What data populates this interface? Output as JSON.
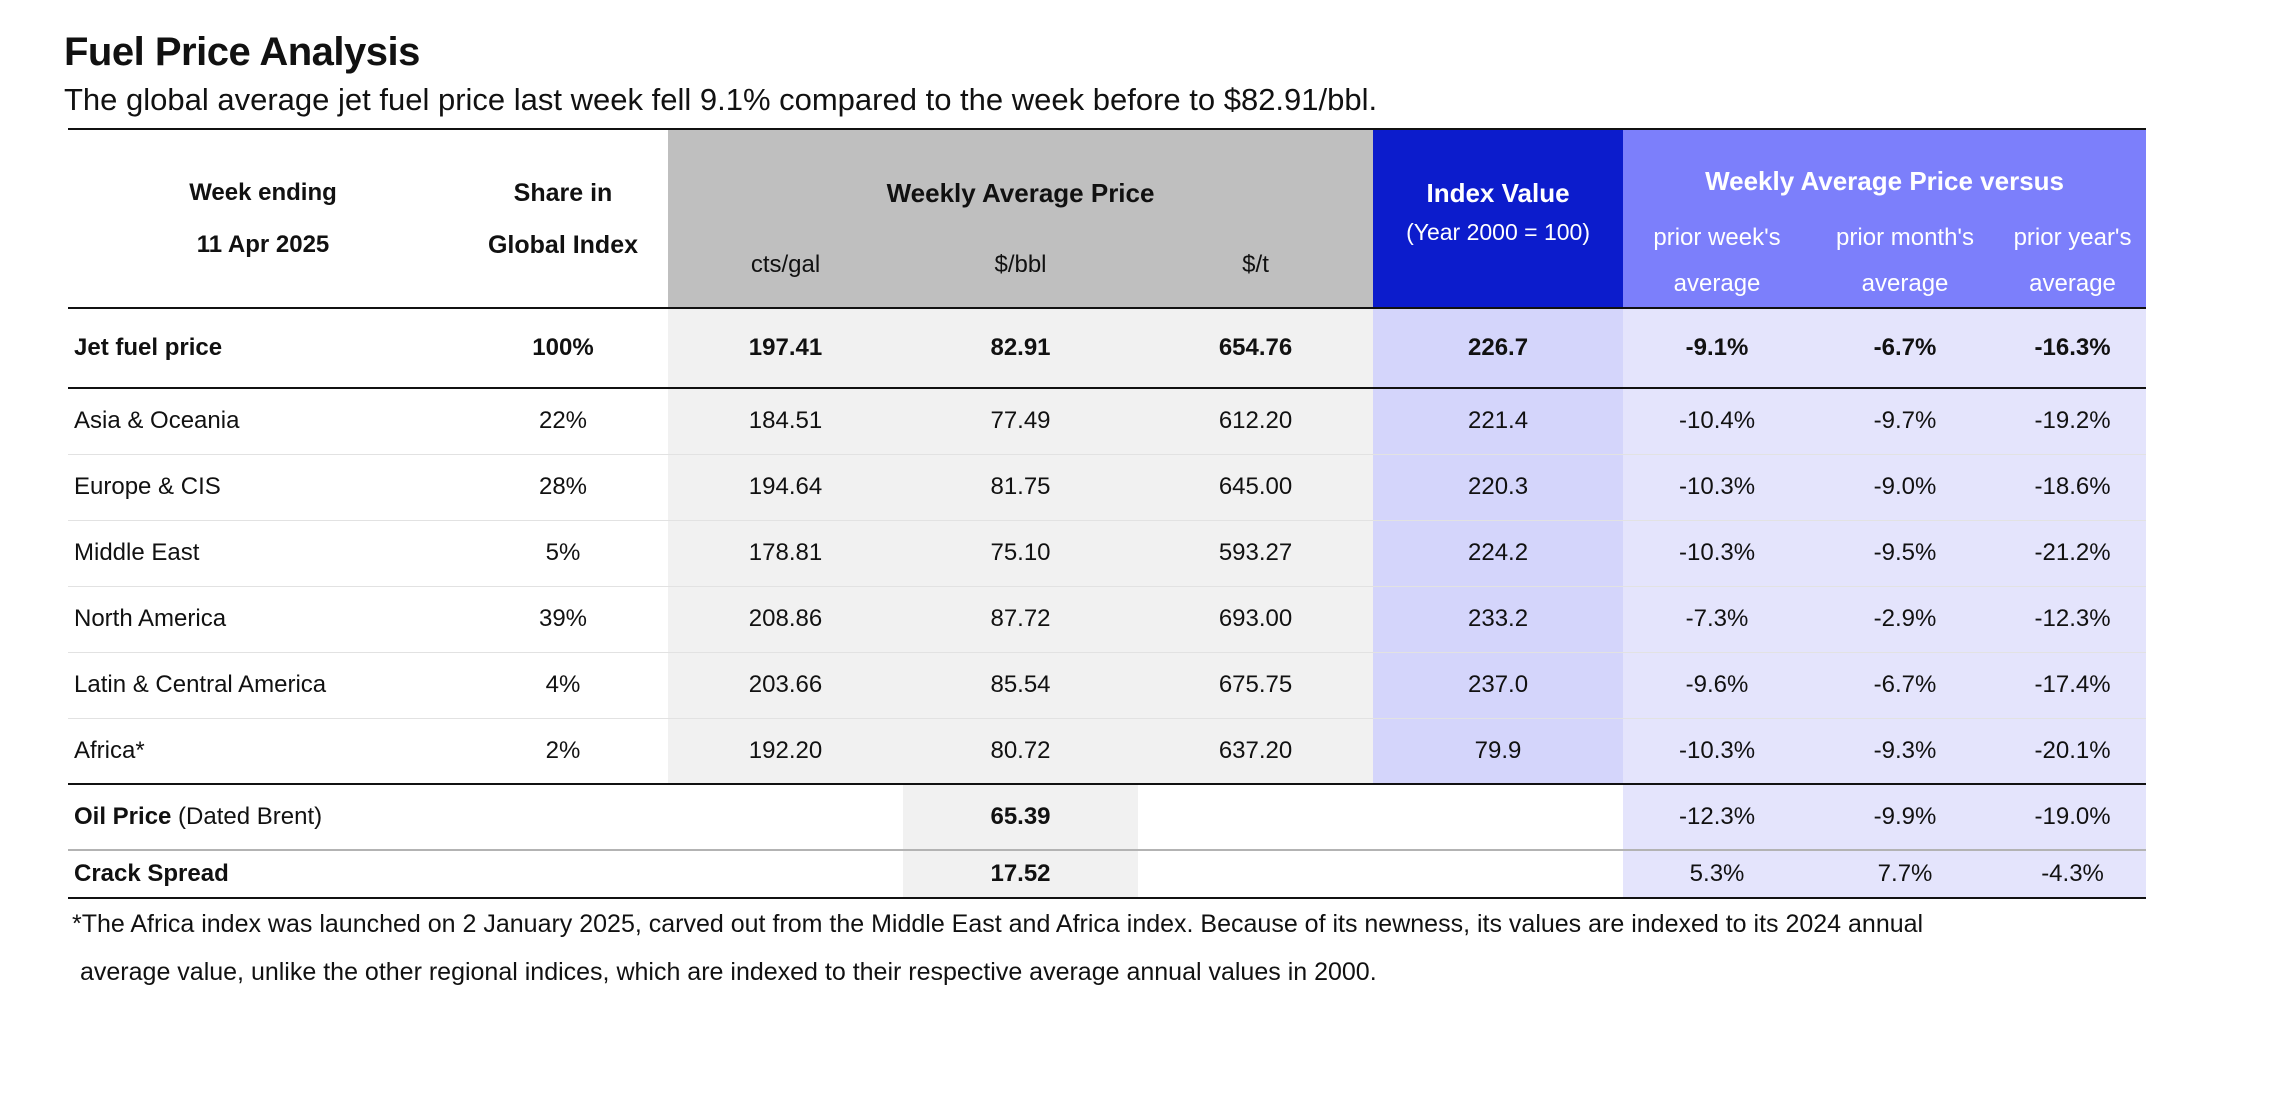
{
  "title": "Fuel Price Analysis",
  "subtitle": "The global average jet fuel price last week fell 9.1% compared to the week before to $82.91/bbl.",
  "header": {
    "week_ending_label": "Week ending",
    "week_ending_date": "11 Apr 2025",
    "share_label_1": "Share in",
    "share_label_2": "Global Index",
    "weekly_avg_label": "Weekly Average Price",
    "unit_cts": "cts/gal",
    "unit_bbl": "$/bbl",
    "unit_t": "$/t",
    "index_label": "Index Value",
    "index_sub": "(Year 2000 = 100)",
    "versus_label": "Weekly Average Price versus",
    "prior_week_1": "prior week's",
    "prior_week_2": "average",
    "prior_month_1": "prior month's",
    "prior_month_2": "average",
    "prior_year_1": "prior year's",
    "prior_year_2": "average"
  },
  "total": {
    "label": "Jet fuel price",
    "share": "100%",
    "cts": "197.41",
    "bbl": "82.91",
    "t": "654.76",
    "index": "226.7",
    "week": "-9.1%",
    "month": "-6.7%",
    "year": "-16.3%"
  },
  "regions": [
    {
      "label": "Asia & Oceania",
      "share": "22%",
      "cts": "184.51",
      "bbl": "77.49",
      "t": "612.20",
      "index": "221.4",
      "week": "-10.4%",
      "month": "-9.7%",
      "year": "-19.2%"
    },
    {
      "label": "Europe & CIS",
      "share": "28%",
      "cts": "194.64",
      "bbl": "81.75",
      "t": "645.00",
      "index": "220.3",
      "week": "-10.3%",
      "month": "-9.0%",
      "year": "-18.6%"
    },
    {
      "label": "Middle East",
      "share": "5%",
      "cts": "178.81",
      "bbl": "75.10",
      "t": "593.27",
      "index": "224.2",
      "week": "-10.3%",
      "month": "-9.5%",
      "year": "-21.2%"
    },
    {
      "label": "North America",
      "share": "39%",
      "cts": "208.86",
      "bbl": "87.72",
      "t": "693.00",
      "index": "233.2",
      "week": "-7.3%",
      "month": "-2.9%",
      "year": "-12.3%"
    },
    {
      "label": "Latin & Central America",
      "share": "4%",
      "cts": "203.66",
      "bbl": "85.54",
      "t": "675.75",
      "index": "237.0",
      "week": "-9.6%",
      "month": "-6.7%",
      "year": "-17.4%"
    },
    {
      "label": "Africa*",
      "share": "2%",
      "cts": "192.20",
      "bbl": "80.72",
      "t": "637.20",
      "index": "79.9",
      "week": "-10.3%",
      "month": "-9.3%",
      "year": "-20.1%"
    }
  ],
  "oil": {
    "label_bold": "Oil Price",
    "label_rest": " (Dated Brent)",
    "bbl": "65.39",
    "week": "-12.3%",
    "month": "-9.9%",
    "year": "-19.0%"
  },
  "crack": {
    "label": "Crack Spread",
    "bbl": "17.52",
    "week": "5.3%",
    "month": "7.7%",
    "year": "-4.3%"
  },
  "footnote": {
    "line1": "*The Africa index was launched on 2 January 2025, carved out from the Middle East and Africa index. Because of its newness, its values are indexed  to its 2024 annual",
    "line2": "average value, unlike the other regional indices, which are indexed to their respective average annual values in 2000."
  },
  "colors": {
    "gray_header": "#bfbfbf",
    "navy_header": "#0c1ccc",
    "blue_header": "#7c7ffb",
    "gray_cell": "#f1f1f1",
    "navy_cell": "#d4d5fb",
    "blue_cell": "#e4e4fc"
  }
}
